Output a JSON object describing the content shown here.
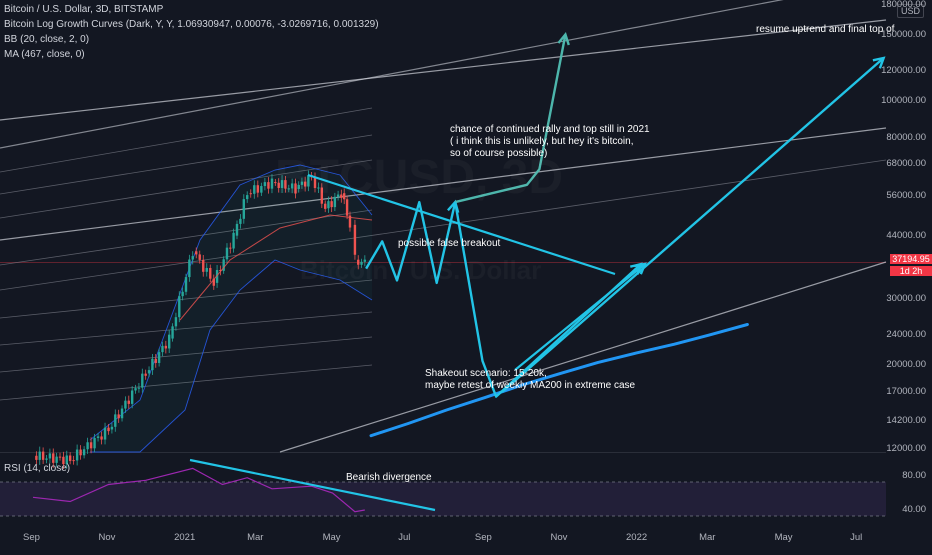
{
  "header": {
    "symbol_line": "Bitcoin / U.S. Dollar, 3D, BITSTAMP",
    "indicator_1": "Bitcoin Log Growth Curves (Dark, Y, Y, 1.06930947, 0.00076, -3.0269716, 0.001329)",
    "indicator_2": "BB (20, close, 2, 0)",
    "indicator_3": "MA (467, close, 0)",
    "rsi_label": "RSI (14, close)"
  },
  "watermark": {
    "ticker": "BTCUSD, 3D",
    "name": "Bitcoin / U.S. Dollar"
  },
  "price_tag": {
    "price": "37194.95",
    "countdown": "1d 2h"
  },
  "currency": "USD",
  "annotations": {
    "top_right": "resume uptrend and final top of",
    "rally_1": "chance of continued rally and top still in 2021",
    "rally_2": "( i think this is unlikely, but hey it's bitcoin,",
    "rally_3": "so of course possible)",
    "false_breakout": "possible false breakout",
    "shakeout_1": "Shakeout scenario: 15-20k,",
    "shakeout_2": "maybe retest of weekly MA200 in extreme case",
    "divergence": "Bearish divergence"
  },
  "chart_data": [
    {
      "type": "line",
      "title": "Bitcoin / U.S. Dollar, 3D, BITSTAMP",
      "y_scale": "log",
      "y_ticks": [
        "180000.00",
        "150000.00",
        "120000.00",
        "100000.00",
        "80000.00",
        "68000.00",
        "56000.00",
        "44000.00",
        "37194.95",
        "30000.00",
        "24000.00",
        "20000.00",
        "17000.00",
        "14200.00",
        "12000.00"
      ],
      "y_tick_values": [
        180000,
        150000,
        120000,
        100000,
        80000,
        68000,
        56000,
        44000,
        30000,
        24000,
        20000,
        17000,
        14200,
        12000
      ],
      "x_ticks": [
        "Sep",
        "Nov",
        "2021",
        "Mar",
        "May",
        "Jul",
        "Sep",
        "Nov",
        "2022",
        "Mar",
        "May",
        "Jul"
      ],
      "series": [
        {
          "name": "BTCUSD",
          "x": [
            "2020-09-01",
            "2020-10-01",
            "2020-11-01",
            "2020-12-01",
            "2020-12-20",
            "2021-01-08",
            "2021-01-25",
            "2021-02-10",
            "2021-02-21",
            "2021-03-13",
            "2021-04-01",
            "2021-04-14",
            "2021-04-25",
            "2021-05-08",
            "2021-05-15",
            "2021-05-19",
            "2021-05-27"
          ],
          "values": [
            11500,
            11200,
            13500,
            19000,
            23500,
            40000,
            33000,
            44000,
            57000,
            61000,
            58500,
            63000,
            52000,
            57000,
            47000,
            38000,
            37195
          ]
        },
        {
          "name": "MA (467, close, 0)",
          "x": [
            "2021-06-01",
            "2021-07-01",
            "2021-08-01",
            "2021-09-01",
            "2021-10-01",
            "2021-11-01",
            "2021-12-01",
            "2022-01-01",
            "2022-02-01",
            "2022-03-01",
            "2022-04-01"
          ],
          "values": [
            13000,
            14000,
            15200,
            16400,
            17700,
            19000,
            20300,
            21500,
            22700,
            24000,
            25600
          ]
        }
      ],
      "projections": [
        {
          "label": "possible false breakout",
          "x": [
            "2021-05-28",
            "2021-06-10",
            "2021-06-22",
            "2021-07-10",
            "2021-07-24",
            "2021-08-08"
          ],
          "values": [
            36000,
            42500,
            33500,
            54000,
            33000,
            54000
          ]
        },
        {
          "label": "chance of continued rally and top still in 2021",
          "x": [
            "2021-08-08",
            "2021-10-05",
            "2021-10-15",
            "2021-11-05"
          ],
          "values": [
            54000,
            60000,
            66000,
            150000
          ]
        },
        {
          "label": "Shakeout scenario: 15-20k",
          "x": [
            "2021-08-08",
            "2021-08-30",
            "2021-09-10",
            "2022-01-05"
          ],
          "values": [
            54000,
            20500,
            16500,
            37000
          ]
        },
        {
          "label": "resume uptrend and final top of",
          "x": [
            "2021-09-15",
            "2022-07-20"
          ],
          "values": [
            17000,
            130000
          ]
        }
      ]
    },
    {
      "type": "line",
      "title": "RSI (14, close)",
      "y_ticks": [
        "80.00",
        "40.00"
      ],
      "y_tick_values": [
        80,
        40
      ],
      "series": [
        {
          "name": "RSI",
          "x": [
            "2020-09-01",
            "2020-10-01",
            "2020-11-01",
            "2020-12-01",
            "2021-01-08",
            "2021-02-01",
            "2021-02-21",
            "2021-03-13",
            "2021-04-14",
            "2021-05-01",
            "2021-05-19",
            "2021-05-27"
          ],
          "values": [
            55,
            50,
            70,
            75,
            89,
            70,
            78,
            65,
            68,
            60,
            38,
            40
          ]
        }
      ],
      "annotation": "Bearish divergence"
    }
  ]
}
